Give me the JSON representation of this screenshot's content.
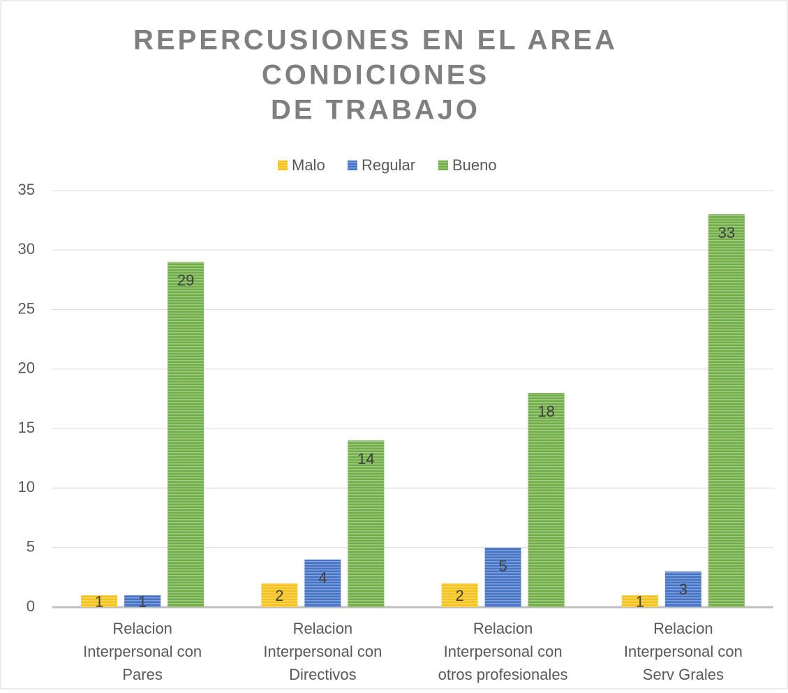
{
  "chart_data": {
    "type": "bar",
    "title": [
      "REPERCUSIONES EN EL AREA",
      "CONDICIONES",
      "DE TRABAJO"
    ],
    "categories": [
      [
        "Relacion",
        "Interpersonal con",
        "Pares"
      ],
      [
        "Relacion",
        "Interpersonal con",
        "Directivos"
      ],
      [
        "Relacion",
        "Interpersonal con",
        "otros profesionales"
      ],
      [
        "Relacion",
        "Interpersonal con",
        "Serv Grales"
      ]
    ],
    "series": [
      {
        "name": "Malo",
        "color": "#f5c218",
        "values": [
          1,
          2,
          2,
          1
        ]
      },
      {
        "name": "Regular",
        "color": "#4472c4",
        "values": [
          1,
          4,
          5,
          3
        ]
      },
      {
        "name": "Bueno",
        "color": "#70ad47",
        "values": [
          29,
          14,
          18,
          33
        ]
      }
    ],
    "ylim": [
      0,
      35
    ],
    "yticks": [
      0,
      5,
      10,
      15,
      20,
      25,
      30,
      35
    ],
    "grid": true,
    "legend": "top"
  }
}
